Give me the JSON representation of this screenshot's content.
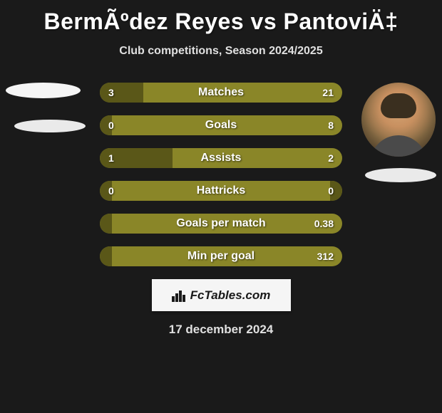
{
  "title": "BermÃºdez Reyes vs PantoviÄ‡",
  "subtitle": "Club competitions, Season 2024/2025",
  "date": "17 december 2024",
  "watermark": "FcTables.com",
  "colors": {
    "background": "#1a1a1a",
    "bar_light": "#8a8628",
    "bar_dark": "#5a5718",
    "text": "#ffffff",
    "subtitle_text": "#e0e0e0",
    "watermark_bg": "#f5f5f5",
    "watermark_text": "#1a1a1a"
  },
  "stats": [
    {
      "label": "Matches",
      "left_value": "3",
      "right_value": "21",
      "left_fill_pct": 18,
      "right_fill_pct": 0
    },
    {
      "label": "Goals",
      "left_value": "0",
      "right_value": "8",
      "left_fill_pct": 5,
      "right_fill_pct": 0
    },
    {
      "label": "Assists",
      "left_value": "1",
      "right_value": "2",
      "left_fill_pct": 30,
      "right_fill_pct": 0
    },
    {
      "label": "Hattricks",
      "left_value": "0",
      "right_value": "0",
      "left_fill_pct": 5,
      "right_fill_pct": 5
    },
    {
      "label": "Goals per match",
      "left_value": "",
      "right_value": "0.38",
      "left_fill_pct": 5,
      "right_fill_pct": 0
    },
    {
      "label": "Min per goal",
      "left_value": "",
      "right_value": "312",
      "left_fill_pct": 5,
      "right_fill_pct": 0
    }
  ]
}
